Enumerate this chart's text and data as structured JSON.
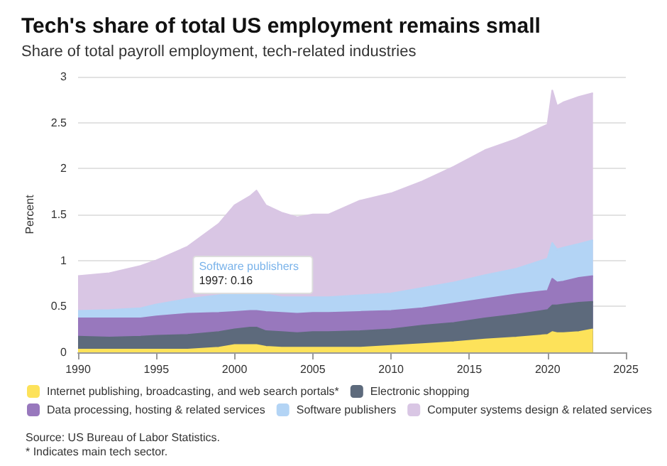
{
  "chart_data": {
    "type": "area",
    "stacked": true,
    "title": "Tech's share of total US employment remains small",
    "subtitle": "Share of total payroll employment, tech-related industries",
    "ylabel": "Percent",
    "x": [
      1990,
      1992,
      1994,
      1995,
      1997,
      1999,
      2000,
      2001,
      2001.4,
      2002,
      2003,
      2004,
      2005,
      2006,
      2008,
      2010,
      2012,
      2014,
      2016,
      2018,
      2020,
      2020.3,
      2020.6,
      2021,
      2022,
      2022.9
    ],
    "series": [
      {
        "name": "Internet publishing, broadcasting, and web search portals*",
        "color": "#fde25a",
        "values": [
          0.03,
          0.03,
          0.03,
          0.03,
          0.03,
          0.05,
          0.08,
          0.08,
          0.08,
          0.06,
          0.05,
          0.05,
          0.05,
          0.05,
          0.05,
          0.07,
          0.09,
          0.11,
          0.14,
          0.16,
          0.19,
          0.22,
          0.21,
          0.21,
          0.22,
          0.25
        ]
      },
      {
        "name": "Electronic shopping",
        "color": "#5d6a7c",
        "values": [
          0.14,
          0.13,
          0.14,
          0.15,
          0.16,
          0.17,
          0.17,
          0.19,
          0.19,
          0.17,
          0.17,
          0.16,
          0.17,
          0.17,
          0.18,
          0.18,
          0.2,
          0.21,
          0.23,
          0.25,
          0.27,
          0.29,
          0.3,
          0.31,
          0.32,
          0.3
        ]
      },
      {
        "name": "Data processing, hosting & related services",
        "color": "#9878bd",
        "values": [
          0.2,
          0.21,
          0.2,
          0.21,
          0.23,
          0.21,
          0.19,
          0.18,
          0.18,
          0.21,
          0.21,
          0.21,
          0.21,
          0.21,
          0.21,
          0.2,
          0.19,
          0.21,
          0.21,
          0.22,
          0.21,
          0.29,
          0.25,
          0.25,
          0.27,
          0.28
        ]
      },
      {
        "name": "Software publishers",
        "color": "#b3d4f5",
        "values": [
          0.08,
          0.09,
          0.11,
          0.13,
          0.16,
          0.19,
          0.2,
          0.2,
          0.21,
          0.19,
          0.17,
          0.18,
          0.17,
          0.17,
          0.18,
          0.19,
          0.22,
          0.23,
          0.26,
          0.28,
          0.35,
          0.39,
          0.36,
          0.37,
          0.37,
          0.39
        ]
      },
      {
        "name": "Computer systems design & related services",
        "color": "#d9c6e4",
        "values": [
          0.38,
          0.4,
          0.46,
          0.48,
          0.57,
          0.78,
          0.96,
          1.05,
          1.1,
          0.97,
          0.92,
          0.87,
          0.9,
          0.9,
          1.03,
          1.09,
          1.16,
          1.26,
          1.36,
          1.41,
          1.46,
          1.66,
          1.56,
          1.58,
          1.6,
          1.6
        ]
      }
    ],
    "xlim": [
      1990,
      2025
    ],
    "xticks": [
      1990,
      1995,
      2000,
      2005,
      2010,
      2015,
      2020,
      2025
    ],
    "ylim": [
      0,
      3
    ],
    "yticks": [
      0,
      0.5,
      1,
      1.5,
      2,
      2.5,
      3
    ],
    "grid": "y",
    "legend": "bottom",
    "marker": "none",
    "annotations": [
      {
        "text": "Software publishers\n1997: 0.16",
        "x": 1997,
        "y": 0.58
      },
      "Source: US Bureau of Labor Statistics.",
      "* Indicates main tech sector."
    ]
  }
}
